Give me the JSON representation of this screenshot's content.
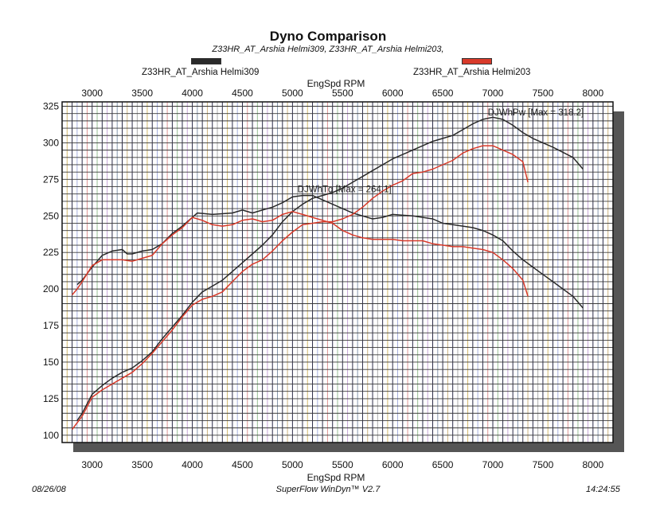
{
  "chart_data": {
    "type": "line",
    "title": "Dyno Comparison",
    "subtitle": "Z33HR_AT_Arshia Helmi309, Z33HR_AT_Arshia Helmi203,",
    "xlabel": "EngSpd  RPM",
    "xlim": [
      2700,
      8200
    ],
    "ylim": [
      95,
      328
    ],
    "x_ticks": [
      3000,
      3500,
      4000,
      4500,
      5000,
      5500,
      6000,
      6500,
      7000,
      7500,
      8000
    ],
    "y_ticks": [
      100,
      125,
      150,
      175,
      200,
      225,
      250,
      275,
      300,
      325
    ],
    "grid": true,
    "legend_placement": "top",
    "annotations": {
      "power_max": "DJWhPw [Max = 318.2]",
      "torque_max": "DJWhTq [Max = 264.1]"
    },
    "series": [
      {
        "name": "Z33HR_AT_Arshia Helmi309",
        "color": "#2a2a2a",
        "power": [
          [
            2850,
            110
          ],
          [
            2900,
            115
          ],
          [
            3000,
            128
          ],
          [
            3100,
            134
          ],
          [
            3200,
            139
          ],
          [
            3300,
            143
          ],
          [
            3400,
            146
          ],
          [
            3500,
            151
          ],
          [
            3600,
            157
          ],
          [
            3700,
            166
          ],
          [
            3800,
            174
          ],
          [
            3900,
            182
          ],
          [
            4000,
            191
          ],
          [
            4100,
            198
          ],
          [
            4200,
            202
          ],
          [
            4300,
            206
          ],
          [
            4400,
            212
          ],
          [
            4500,
            218
          ],
          [
            4600,
            224
          ],
          [
            4700,
            230
          ],
          [
            4800,
            237
          ],
          [
            4900,
            246
          ],
          [
            5000,
            253
          ],
          [
            5100,
            258
          ],
          [
            5200,
            262
          ],
          [
            5300,
            264
          ],
          [
            5400,
            266
          ],
          [
            5500,
            269
          ],
          [
            5600,
            273
          ],
          [
            5700,
            277
          ],
          [
            5800,
            281
          ],
          [
            5900,
            285
          ],
          [
            6000,
            289
          ],
          [
            6200,
            295
          ],
          [
            6400,
            301
          ],
          [
            6500,
            303
          ],
          [
            6600,
            305
          ],
          [
            6700,
            309
          ],
          [
            6800,
            313
          ],
          [
            6900,
            316
          ],
          [
            7000,
            317.5
          ],
          [
            7100,
            316
          ],
          [
            7200,
            312
          ],
          [
            7300,
            307
          ],
          [
            7400,
            303
          ],
          [
            7600,
            297
          ],
          [
            7800,
            290
          ],
          [
            7900,
            282
          ]
        ],
        "torque": [
          [
            2850,
            203
          ],
          [
            2900,
            206
          ],
          [
            3000,
            215
          ],
          [
            3100,
            223
          ],
          [
            3200,
            226
          ],
          [
            3300,
            227
          ],
          [
            3350,
            224
          ],
          [
            3400,
            224
          ],
          [
            3500,
            226
          ],
          [
            3600,
            227
          ],
          [
            3700,
            231
          ],
          [
            3800,
            238
          ],
          [
            3900,
            243
          ],
          [
            4000,
            249
          ],
          [
            4050,
            252
          ],
          [
            4200,
            251
          ],
          [
            4400,
            252
          ],
          [
            4500,
            254
          ],
          [
            4600,
            252
          ],
          [
            4700,
            254
          ],
          [
            4800,
            256
          ],
          [
            4900,
            259
          ],
          [
            5000,
            263
          ],
          [
            5100,
            264
          ],
          [
            5200,
            264
          ],
          [
            5300,
            261
          ],
          [
            5400,
            258
          ],
          [
            5500,
            255
          ],
          [
            5600,
            252
          ],
          [
            5700,
            250
          ],
          [
            5800,
            248
          ],
          [
            5900,
            249
          ],
          [
            6000,
            251
          ],
          [
            6200,
            250
          ],
          [
            6300,
            249
          ],
          [
            6400,
            248
          ],
          [
            6500,
            245
          ],
          [
            6600,
            244
          ],
          [
            6700,
            243
          ],
          [
            6800,
            242
          ],
          [
            6900,
            240
          ],
          [
            7000,
            237
          ],
          [
            7100,
            233
          ],
          [
            7200,
            226
          ],
          [
            7300,
            220
          ],
          [
            7400,
            215
          ],
          [
            7500,
            210
          ],
          [
            7600,
            205
          ],
          [
            7700,
            200
          ],
          [
            7800,
            195
          ],
          [
            7900,
            187
          ]
        ]
      },
      {
        "name": "Z33HR_AT_Arshia Helmi203",
        "color": "#d83a2a",
        "power": [
          [
            2800,
            104
          ],
          [
            2900,
            113
          ],
          [
            3000,
            126
          ],
          [
            3100,
            131
          ],
          [
            3200,
            135
          ],
          [
            3300,
            139
          ],
          [
            3400,
            143
          ],
          [
            3500,
            149
          ],
          [
            3600,
            156
          ],
          [
            3700,
            164
          ],
          [
            3800,
            172
          ],
          [
            3900,
            181
          ],
          [
            4000,
            189
          ],
          [
            4100,
            193
          ],
          [
            4200,
            195
          ],
          [
            4300,
            198
          ],
          [
            4400,
            205
          ],
          [
            4500,
            212
          ],
          [
            4600,
            217
          ],
          [
            4700,
            220
          ],
          [
            4800,
            226
          ],
          [
            4900,
            233
          ],
          [
            5000,
            239
          ],
          [
            5100,
            244
          ],
          [
            5200,
            245
          ],
          [
            5300,
            246
          ],
          [
            5400,
            246
          ],
          [
            5500,
            248
          ],
          [
            5600,
            251
          ],
          [
            5700,
            256
          ],
          [
            5800,
            262
          ],
          [
            5900,
            267
          ],
          [
            6000,
            271
          ],
          [
            6100,
            274
          ],
          [
            6200,
            279
          ],
          [
            6300,
            280
          ],
          [
            6400,
            282
          ],
          [
            6500,
            285
          ],
          [
            6600,
            288
          ],
          [
            6700,
            293
          ],
          [
            6800,
            296
          ],
          [
            6900,
            298
          ],
          [
            7000,
            298
          ],
          [
            7100,
            295
          ],
          [
            7200,
            292
          ],
          [
            7300,
            287
          ],
          [
            7350,
            273
          ]
        ],
        "torque": [
          [
            2800,
            196
          ],
          [
            2850,
            200
          ],
          [
            2900,
            205
          ],
          [
            3000,
            216
          ],
          [
            3100,
            220
          ],
          [
            3200,
            220
          ],
          [
            3300,
            220
          ],
          [
            3400,
            219
          ],
          [
            3500,
            221
          ],
          [
            3600,
            223
          ],
          [
            3700,
            231
          ],
          [
            3800,
            237
          ],
          [
            3900,
            242
          ],
          [
            4000,
            249
          ],
          [
            4100,
            247
          ],
          [
            4200,
            244
          ],
          [
            4300,
            243
          ],
          [
            4400,
            244
          ],
          [
            4500,
            247
          ],
          [
            4600,
            248
          ],
          [
            4700,
            246
          ],
          [
            4800,
            247
          ],
          [
            4900,
            251
          ],
          [
            5000,
            253
          ],
          [
            5100,
            251
          ],
          [
            5200,
            249
          ],
          [
            5300,
            247
          ],
          [
            5400,
            245
          ],
          [
            5500,
            240
          ],
          [
            5600,
            237
          ],
          [
            5700,
            235
          ],
          [
            5800,
            234
          ],
          [
            5900,
            234
          ],
          [
            6000,
            234
          ],
          [
            6100,
            233
          ],
          [
            6200,
            233
          ],
          [
            6300,
            233
          ],
          [
            6400,
            231
          ],
          [
            6500,
            230
          ],
          [
            6600,
            229
          ],
          [
            6700,
            229
          ],
          [
            6800,
            228
          ],
          [
            6900,
            227
          ],
          [
            7000,
            225
          ],
          [
            7100,
            220
          ],
          [
            7200,
            214
          ],
          [
            7300,
            206
          ],
          [
            7350,
            195
          ]
        ]
      }
    ]
  },
  "footer": {
    "date": "08/26/08",
    "software": "SuperFlow WinDyn™ V2.7",
    "time": "14:24:55"
  }
}
